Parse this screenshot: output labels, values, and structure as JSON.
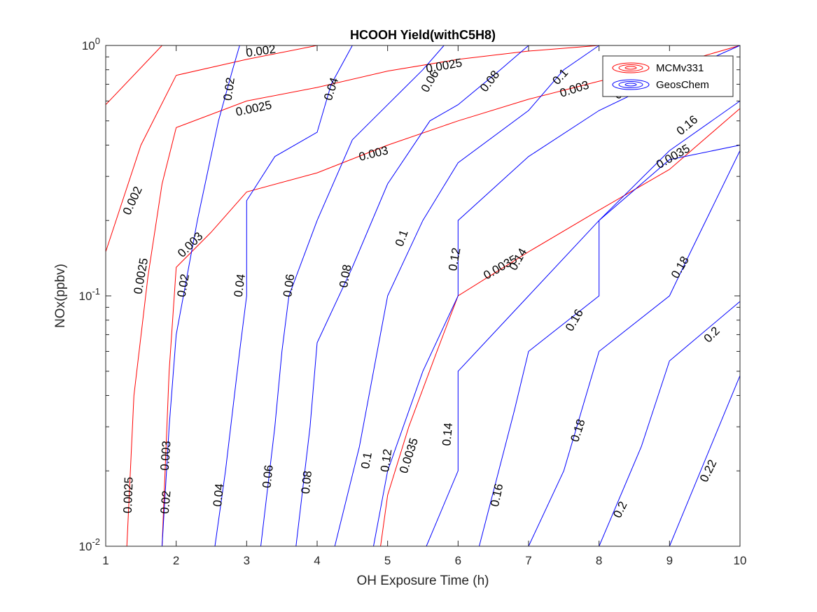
{
  "chart_data": {
    "type": "contour",
    "title": "HCOOH Yield(withC5H8)",
    "xlabel": "OH Exposure Time (h)",
    "ylabel": "NOx(ppbv)",
    "xlim": [
      1,
      10
    ],
    "ylim": [
      0.01,
      1
    ],
    "yscale": "log",
    "x_ticks": [
      "1",
      "2",
      "3",
      "4",
      "5",
      "6",
      "7",
      "8",
      "9",
      "10"
    ],
    "y_ticks": [
      {
        "value": 0.01,
        "base": "10",
        "exp": "-2"
      },
      {
        "value": 0.1,
        "base": "10",
        "exp": "-1"
      },
      {
        "value": 1,
        "base": "10",
        "exp": "0"
      }
    ],
    "grid": false,
    "legend_position": "top-right",
    "legend": [
      {
        "name": "MCMv331",
        "color": "#ff0000"
      },
      {
        "name": "GeosChem",
        "color": "#0000ff"
      }
    ],
    "series": [
      {
        "name": "MCMv331",
        "color": "#ff0000",
        "contours": [
          {
            "level": 0.002,
            "points": [
              [
                1,
                0.58
              ],
              [
                1.8,
                1
              ]
            ]
          },
          {
            "level": 0.002,
            "points": [
              [
                2,
                0.76
              ],
              [
                3,
                0.88
              ],
              [
                4,
                1
              ]
            ]
          },
          {
            "level": 0.002,
            "points": [
              [
                1,
                0.15
              ],
              [
                1.5,
                0.4
              ],
              [
                2,
                0.76
              ]
            ]
          },
          {
            "level": 0.0025,
            "points": [
              [
                2,
                0.47
              ],
              [
                3,
                0.6
              ],
              [
                4,
                0.68
              ],
              [
                5,
                0.79
              ],
              [
                6,
                0.88
              ],
              [
                7,
                0.95
              ],
              [
                8,
                1
              ]
            ]
          },
          {
            "level": 0.0025,
            "points": [
              [
                1.3,
                0.01
              ],
              [
                1.4,
                0.04
              ],
              [
                1.6,
                0.12
              ],
              [
                1.8,
                0.28
              ],
              [
                2,
                0.47
              ]
            ]
          },
          {
            "level": 0.003,
            "points": [
              [
                2.5,
                0.18
              ],
              [
                3,
                0.26
              ],
              [
                4,
                0.31
              ],
              [
                5,
                0.4
              ],
              [
                6,
                0.5
              ],
              [
                7,
                0.61
              ],
              [
                8,
                0.72
              ],
              [
                9,
                0.83
              ],
              [
                10,
                1
              ]
            ]
          },
          {
            "level": 0.003,
            "points": [
              [
                1.8,
                0.01
              ],
              [
                1.9,
                0.05
              ],
              [
                2,
                0.13
              ],
              [
                2.5,
                0.18
              ]
            ]
          },
          {
            "level": 0.0035,
            "points": [
              [
                4.9,
                0.01
              ],
              [
                5,
                0.016
              ],
              [
                5.3,
                0.03
              ],
              [
                5.7,
                0.06
              ],
              [
                6,
                0.1
              ],
              [
                7,
                0.15
              ],
              [
                8,
                0.22
              ],
              [
                9,
                0.32
              ],
              [
                10,
                0.56
              ]
            ]
          }
        ]
      },
      {
        "name": "GeosChem",
        "color": "#0000ff",
        "contours": [
          {
            "level": 0.02,
            "points": [
              [
                1.8,
                0.01
              ],
              [
                1.9,
                0.03
              ],
              [
                2,
                0.07
              ],
              [
                2.3,
                0.2
              ],
              [
                2.6,
                0.5
              ],
              [
                2.8,
                0.8
              ],
              [
                2.9,
                1
              ]
            ]
          },
          {
            "level": 0.04,
            "points": [
              [
                2.55,
                0.01
              ],
              [
                2.7,
                0.02
              ],
              [
                2.9,
                0.06
              ],
              [
                3,
                0.1
              ],
              [
                3,
                0.24
              ],
              [
                3.4,
                0.36
              ],
              [
                4,
                0.45
              ],
              [
                4.2,
                0.7
              ],
              [
                4.5,
                1
              ]
            ]
          },
          {
            "level": 0.06,
            "points": [
              [
                3.2,
                0.01
              ],
              [
                3.4,
                0.03
              ],
              [
                3.5,
                0.06
              ],
              [
                3.6,
                0.1
              ],
              [
                4,
                0.2
              ],
              [
                4.5,
                0.42
              ],
              [
                5,
                0.58
              ],
              [
                5.5,
                0.8
              ],
              [
                5.8,
                1
              ]
            ]
          },
          {
            "level": 0.08,
            "points": [
              [
                3.7,
                0.01
              ],
              [
                3.9,
                0.03
              ],
              [
                4,
                0.065
              ],
              [
                4.5,
                0.13
              ],
              [
                5,
                0.28
              ],
              [
                5.6,
                0.5
              ],
              [
                6,
                0.58
              ],
              [
                6.6,
                0.8
              ],
              [
                7,
                1
              ]
            ]
          },
          {
            "level": 0.1,
            "points": [
              [
                4.25,
                0.01
              ],
              [
                4.6,
                0.025
              ],
              [
                5,
                0.1
              ],
              [
                5.5,
                0.2
              ],
              [
                6,
                0.34
              ],
              [
                7,
                0.55
              ],
              [
                7.5,
                0.8
              ],
              [
                8,
                1
              ]
            ]
          },
          {
            "level": 0.12,
            "points": [
              [
                4.8,
                0.01
              ],
              [
                5,
                0.02
              ],
              [
                5.5,
                0.05
              ],
              [
                6,
                0.1
              ],
              [
                6,
                0.2
              ],
              [
                7,
                0.36
              ],
              [
                8,
                0.55
              ],
              [
                9,
                0.75
              ],
              [
                10,
                1
              ]
            ]
          },
          {
            "level": 0.14,
            "points": [
              [
                5.55,
                0.01
              ],
              [
                6,
                0.02
              ],
              [
                6,
                0.05
              ],
              [
                7,
                0.1
              ],
              [
                8,
                0.2
              ],
              [
                9,
                0.38
              ],
              [
                10,
                0.6
              ]
            ]
          },
          {
            "level": 0.16,
            "points": [
              [
                6.3,
                0.01
              ],
              [
                6.8,
                0.035
              ],
              [
                7,
                0.06
              ],
              [
                8,
                0.1
              ],
              [
                8,
                0.2
              ],
              [
                9,
                0.35
              ],
              [
                10,
                0.4
              ]
            ]
          },
          {
            "level": 0.18,
            "points": [
              [
                7,
                0.01
              ],
              [
                7.5,
                0.02
              ],
              [
                8,
                0.06
              ],
              [
                9,
                0.1
              ],
              [
                9.3,
                0.15
              ],
              [
                10,
                0.38
              ]
            ]
          },
          {
            "level": 0.2,
            "points": [
              [
                8,
                0.01
              ],
              [
                8.6,
                0.025
              ],
              [
                9,
                0.055
              ],
              [
                10,
                0.095
              ]
            ]
          },
          {
            "level": 0.22,
            "points": [
              [
                9,
                0.01
              ],
              [
                10,
                0.048
              ]
            ]
          }
        ]
      }
    ],
    "contour_labels": [
      {
        "text": "0.002",
        "x": 3.2,
        "y": 0.95,
        "angle": -8,
        "color": "red"
      },
      {
        "text": "0.0025",
        "x": 5.8,
        "y": 0.83,
        "angle": -10,
        "color": "red"
      },
      {
        "text": "0.0025",
        "x": 3.1,
        "y": 0.56,
        "angle": -12,
        "color": "red"
      },
      {
        "text": "0.002",
        "x": 1.38,
        "y": 0.24,
        "angle": -65,
        "color": "red"
      },
      {
        "text": "0.003",
        "x": 4.8,
        "y": 0.37,
        "angle": -14,
        "color": "red"
      },
      {
        "text": "0.003",
        "x": 2.2,
        "y": 0.16,
        "angle": -45,
        "color": "red"
      },
      {
        "text": "0.0025",
        "x": 1.5,
        "y": 0.12,
        "angle": -80,
        "color": "red"
      },
      {
        "text": "0.003",
        "x": 1.85,
        "y": 0.023,
        "angle": -86,
        "color": "red"
      },
      {
        "text": "0.0025",
        "x": 1.32,
        "y": 0.016,
        "angle": -88,
        "color": "red"
      },
      {
        "text": "0.0035",
        "x": 6.6,
        "y": 0.13,
        "angle": -30,
        "color": "red"
      },
      {
        "text": "0.0035",
        "x": 5.3,
        "y": 0.023,
        "angle": -72,
        "color": "red"
      },
      {
        "text": "0.0035",
        "x": 9.05,
        "y": 0.36,
        "angle": -30,
        "color": "red"
      },
      {
        "text": "0.003",
        "x": 7.65,
        "y": 0.67,
        "angle": -18,
        "color": "red"
      },
      {
        "text": "0.02",
        "x": 2.75,
        "y": 0.67,
        "angle": -82,
        "color": "blue"
      },
      {
        "text": "0.02",
        "x": 2.1,
        "y": 0.11,
        "angle": -80,
        "color": "blue"
      },
      {
        "text": "0.02",
        "x": 1.85,
        "y": 0.015,
        "angle": -85,
        "color": "blue"
      },
      {
        "text": "0.04",
        "x": 4.2,
        "y": 0.67,
        "angle": -72,
        "color": "blue"
      },
      {
        "text": "0.04",
        "x": 2.9,
        "y": 0.11,
        "angle": -82,
        "color": "blue"
      },
      {
        "text": "0.04",
        "x": 2.6,
        "y": 0.016,
        "angle": -84,
        "color": "blue"
      },
      {
        "text": "0.06",
        "x": 5.6,
        "y": 0.72,
        "angle": -60,
        "color": "blue"
      },
      {
        "text": "0.06",
        "x": 3.6,
        "y": 0.11,
        "angle": -82,
        "color": "blue"
      },
      {
        "text": "0.06",
        "x": 3.3,
        "y": 0.019,
        "angle": -84,
        "color": "blue"
      },
      {
        "text": "0.08",
        "x": 6.45,
        "y": 0.72,
        "angle": -52,
        "color": "blue"
      },
      {
        "text": "0.08",
        "x": 4.4,
        "y": 0.12,
        "angle": -80,
        "color": "blue"
      },
      {
        "text": "0.08",
        "x": 3.85,
        "y": 0.018,
        "angle": -84,
        "color": "blue"
      },
      {
        "text": "0.1",
        "x": 7.45,
        "y": 0.75,
        "angle": -48,
        "color": "blue"
      },
      {
        "text": "0.1",
        "x": 5.2,
        "y": 0.17,
        "angle": -70,
        "color": "blue"
      },
      {
        "text": "0.1",
        "x": 4.7,
        "y": 0.022,
        "angle": -80,
        "color": "blue"
      },
      {
        "text": "0.12",
        "x": 8.35,
        "y": 0.67,
        "angle": -45,
        "color": "blue"
      },
      {
        "text": "0.12",
        "x": 5.95,
        "y": 0.14,
        "angle": -80,
        "color": "blue"
      },
      {
        "text": "0.12",
        "x": 4.98,
        "y": 0.022,
        "angle": -82,
        "color": "blue"
      },
      {
        "text": "0.14",
        "x": 6.85,
        "y": 0.14,
        "angle": -60,
        "color": "blue"
      },
      {
        "text": "0.14",
        "x": 5.85,
        "y": 0.028,
        "angle": -85,
        "color": "blue"
      },
      {
        "text": "0.16",
        "x": 9.25,
        "y": 0.48,
        "angle": -40,
        "color": "blue"
      },
      {
        "text": "0.16",
        "x": 7.65,
        "y": 0.08,
        "angle": -60,
        "color": "blue"
      },
      {
        "text": "0.16",
        "x": 6.55,
        "y": 0.016,
        "angle": -78,
        "color": "blue"
      },
      {
        "text": "0.18",
        "x": 9.15,
        "y": 0.13,
        "angle": -60,
        "color": "blue"
      },
      {
        "text": "0.18",
        "x": 7.7,
        "y": 0.029,
        "angle": -72,
        "color": "blue"
      },
      {
        "text": "0.2",
        "x": 9.6,
        "y": 0.07,
        "angle": -45,
        "color": "blue"
      },
      {
        "text": "0.2",
        "x": 8.3,
        "y": 0.014,
        "angle": -64,
        "color": "blue"
      },
      {
        "text": "0.22",
        "x": 9.55,
        "y": 0.02,
        "angle": -64,
        "color": "blue"
      }
    ]
  }
}
